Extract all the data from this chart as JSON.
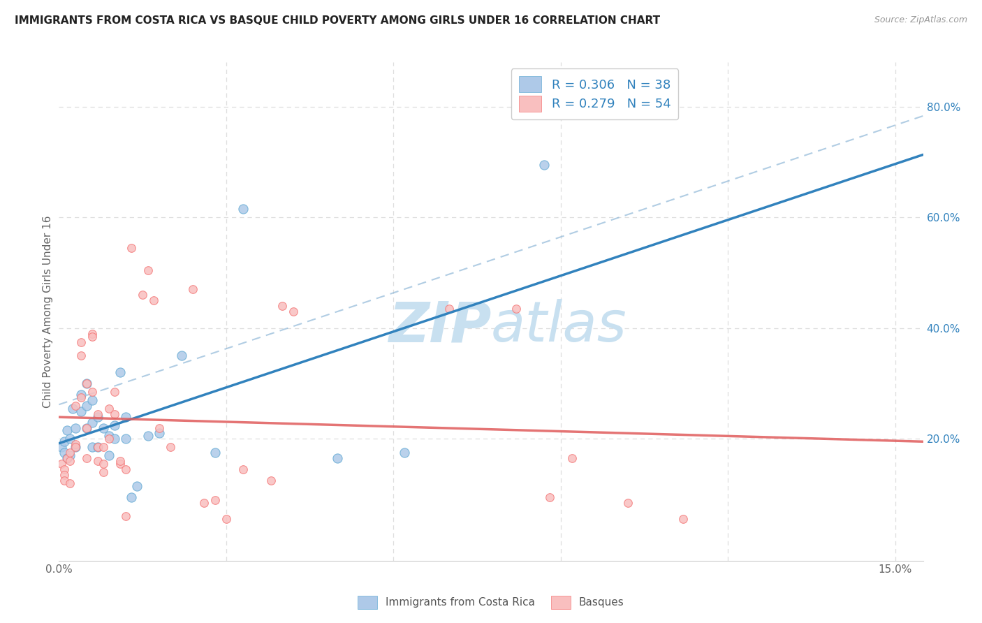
{
  "title": "IMMIGRANTS FROM COSTA RICA VS BASQUE CHILD POVERTY AMONG GIRLS UNDER 16 CORRELATION CHART",
  "source": "Source: ZipAtlas.com",
  "ylabel": "Child Poverty Among Girls Under 16",
  "xlim": [
    0.0,
    0.155
  ],
  "ylim": [
    -0.02,
    0.88
  ],
  "xticks": [
    0.0,
    0.03,
    0.06,
    0.09,
    0.12,
    0.15
  ],
  "xticklabels": [
    "0.0%",
    "",
    "",
    "",
    "",
    "15.0%"
  ],
  "yticks_right": [
    0.0,
    0.2,
    0.4,
    0.6,
    0.8
  ],
  "yticklabels_right": [
    "",
    "20.0%",
    "40.0%",
    "60.0%",
    "80.0%"
  ],
  "legend1_label": "R = 0.306   N = 38",
  "legend2_label": "R = 0.279   N = 54",
  "bottom_legend1": "Immigrants from Costa Rica",
  "bottom_legend2": "Basques",
  "blue_fill": "#aec9e8",
  "blue_edge": "#6baed6",
  "pink_fill": "#f9bfbf",
  "pink_edge": "#f47c7c",
  "blue_line": "#3182bd",
  "pink_line": "#e05c5c",
  "grid_color": "#dedede",
  "title_color": "#222222",
  "source_color": "#999999",
  "legend_text_color": "#3182bd",
  "axis_label_color": "#666666",
  "tick_color": "#3182bd",
  "watermark_color": "#c8e0f0",
  "blue_scatter_x": [
    0.0005,
    0.001,
    0.001,
    0.0015,
    0.0015,
    0.002,
    0.002,
    0.0025,
    0.003,
    0.003,
    0.004,
    0.004,
    0.005,
    0.005,
    0.005,
    0.006,
    0.006,
    0.006,
    0.007,
    0.007,
    0.008,
    0.009,
    0.009,
    0.01,
    0.01,
    0.011,
    0.012,
    0.012,
    0.013,
    0.014,
    0.016,
    0.018,
    0.022,
    0.028,
    0.033,
    0.05,
    0.062,
    0.087
  ],
  "blue_scatter_y": [
    0.185,
    0.195,
    0.175,
    0.215,
    0.165,
    0.2,
    0.17,
    0.255,
    0.22,
    0.185,
    0.28,
    0.25,
    0.26,
    0.22,
    0.3,
    0.27,
    0.23,
    0.185,
    0.24,
    0.185,
    0.22,
    0.205,
    0.17,
    0.225,
    0.2,
    0.32,
    0.2,
    0.24,
    0.095,
    0.115,
    0.205,
    0.21,
    0.35,
    0.175,
    0.615,
    0.165,
    0.175,
    0.695
  ],
  "pink_scatter_x": [
    0.0005,
    0.001,
    0.001,
    0.001,
    0.0015,
    0.002,
    0.002,
    0.002,
    0.003,
    0.003,
    0.003,
    0.004,
    0.004,
    0.004,
    0.005,
    0.005,
    0.005,
    0.006,
    0.006,
    0.006,
    0.007,
    0.007,
    0.007,
    0.008,
    0.008,
    0.008,
    0.009,
    0.009,
    0.01,
    0.01,
    0.011,
    0.011,
    0.012,
    0.012,
    0.013,
    0.015,
    0.016,
    0.017,
    0.018,
    0.02,
    0.024,
    0.026,
    0.028,
    0.03,
    0.033,
    0.038,
    0.04,
    0.042,
    0.07,
    0.082,
    0.088,
    0.092,
    0.102,
    0.112
  ],
  "pink_scatter_y": [
    0.155,
    0.145,
    0.135,
    0.125,
    0.165,
    0.175,
    0.16,
    0.12,
    0.19,
    0.185,
    0.26,
    0.275,
    0.35,
    0.375,
    0.3,
    0.22,
    0.165,
    0.39,
    0.285,
    0.385,
    0.245,
    0.185,
    0.16,
    0.185,
    0.155,
    0.14,
    0.255,
    0.2,
    0.245,
    0.285,
    0.155,
    0.16,
    0.145,
    0.06,
    0.545,
    0.46,
    0.505,
    0.45,
    0.22,
    0.185,
    0.47,
    0.085,
    0.09,
    0.055,
    0.145,
    0.125,
    0.44,
    0.43,
    0.435,
    0.435,
    0.095,
    0.165,
    0.085,
    0.055
  ]
}
